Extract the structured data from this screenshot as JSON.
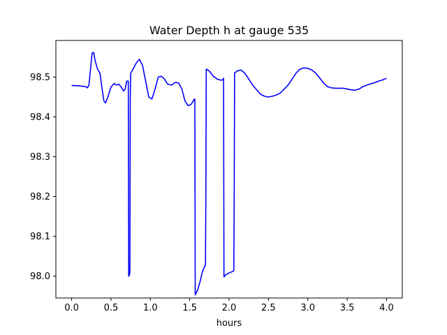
{
  "chart_data": {
    "type": "line",
    "title": "Water Depth h at gauge 535",
    "xlabel": "hours",
    "ylabel": "",
    "xlim": [
      -0.2,
      4.2
    ],
    "ylim": [
      97.945,
      98.592
    ],
    "xticks": [
      0.0,
      0.5,
      1.0,
      1.5,
      2.0,
      2.5,
      3.0,
      3.5,
      4.0
    ],
    "xtick_labels": [
      "0.0",
      "0.5",
      "1.0",
      "1.5",
      "2.0",
      "2.5",
      "3.0",
      "3.5",
      "4.0"
    ],
    "yticks": [
      98.0,
      98.1,
      98.2,
      98.3,
      98.4,
      98.5
    ],
    "ytick_labels": [
      "98.0",
      "98.1",
      "98.2",
      "98.3",
      "98.4",
      "98.5"
    ],
    "grid": false,
    "series": [
      {
        "color": "#0000ff",
        "x": [
          0.0,
          0.1,
          0.18,
          0.2,
          0.22,
          0.24,
          0.26,
          0.28,
          0.3,
          0.33,
          0.36,
          0.38,
          0.41,
          0.43,
          0.46,
          0.5,
          0.54,
          0.57,
          0.6,
          0.63,
          0.66,
          0.68,
          0.7,
          0.72,
          0.725,
          0.727,
          0.735,
          0.74,
          0.745,
          0.75,
          0.78,
          0.82,
          0.86,
          0.9,
          0.94,
          0.98,
          1.02,
          1.06,
          1.1,
          1.14,
          1.18,
          1.22,
          1.27,
          1.32,
          1.36,
          1.4,
          1.44,
          1.48,
          1.52,
          1.56,
          1.565,
          1.57,
          1.6,
          1.63,
          1.66,
          1.69,
          1.7,
          1.705,
          1.71,
          1.75,
          1.8,
          1.85,
          1.9,
          1.925,
          1.93,
          1.935,
          1.96,
          2.0,
          2.05,
          2.06,
          2.065,
          2.07,
          2.1,
          2.15,
          2.2,
          2.25,
          2.3,
          2.35,
          2.4,
          2.45,
          2.5,
          2.55,
          2.6,
          2.65,
          2.7,
          2.75,
          2.8,
          2.85,
          2.9,
          2.95,
          3.0,
          3.05,
          3.1,
          3.15,
          3.2,
          3.25,
          3.3,
          3.35,
          3.4,
          3.45,
          3.5,
          3.55,
          3.6,
          3.65,
          3.7,
          3.75,
          3.8,
          3.85,
          3.9,
          3.95,
          4.0
        ],
        "y": [
          98.479,
          98.478,
          98.476,
          98.473,
          98.48,
          98.52,
          98.56,
          98.562,
          98.54,
          98.52,
          98.51,
          98.48,
          98.44,
          98.435,
          98.45,
          98.475,
          98.484,
          98.48,
          98.482,
          98.475,
          98.465,
          98.47,
          98.49,
          98.49,
          98.0,
          98.0,
          98.003,
          98.01,
          98.45,
          98.51,
          98.52,
          98.535,
          98.545,
          98.53,
          98.49,
          98.45,
          98.445,
          98.47,
          98.5,
          98.502,
          98.495,
          98.482,
          98.48,
          98.487,
          98.485,
          98.47,
          98.44,
          98.428,
          98.432,
          98.445,
          98.444,
          97.953,
          97.965,
          97.985,
          98.01,
          98.025,
          98.026,
          98.2,
          98.52,
          98.515,
          98.502,
          98.495,
          98.492,
          98.494,
          98.497,
          97.998,
          98.004,
          98.008,
          98.012,
          98.014,
          98.2,
          98.51,
          98.515,
          98.518,
          98.51,
          98.495,
          98.48,
          98.468,
          98.457,
          98.452,
          98.45,
          98.452,
          98.455,
          98.46,
          98.47,
          98.48,
          98.495,
          98.51,
          98.52,
          98.523,
          98.522,
          98.518,
          98.51,
          98.498,
          98.485,
          98.476,
          98.473,
          98.472,
          98.472,
          98.472,
          98.47,
          98.468,
          98.467,
          98.47,
          98.476,
          98.48,
          98.483,
          98.486,
          98.49,
          98.493,
          98.497
        ]
      }
    ]
  }
}
